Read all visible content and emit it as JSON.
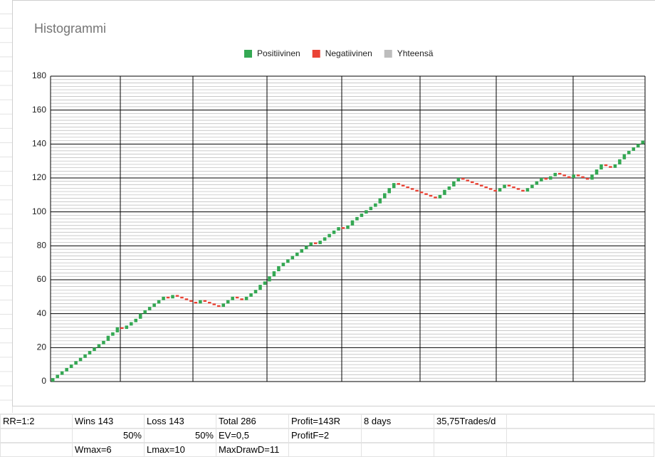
{
  "chart_data": {
    "type": "waterfall",
    "title": "Histogrammi",
    "series": [
      {
        "name": "Positiivinen",
        "color": "#34a853"
      },
      {
        "name": "Negatiivinen",
        "color": "#ea4335"
      },
      {
        "name": "Yhteensä",
        "color": "#bdbdbd"
      }
    ],
    "values": [
      2,
      2,
      2,
      2,
      2,
      2,
      2,
      2,
      2,
      2,
      2,
      2,
      3,
      2,
      3,
      -1,
      2,
      2,
      2,
      3,
      2,
      2,
      2,
      2,
      2,
      -1,
      2,
      -1,
      -1,
      -1,
      -1,
      -1,
      2,
      -1,
      -1,
      -1,
      -1,
      2,
      2,
      2,
      -1,
      -1,
      2,
      2,
      2,
      3,
      2,
      3,
      3,
      3,
      2,
      2,
      2,
      2,
      2,
      2,
      2,
      -1,
      2,
      2,
      2,
      2,
      2,
      -1,
      2,
      3,
      2,
      2,
      2,
      2,
      2,
      3,
      3,
      3,
      3,
      -1,
      -1,
      -1,
      -1,
      -1,
      -1,
      -1,
      -1,
      -1,
      2,
      3,
      2,
      3,
      2,
      -1,
      -1,
      -1,
      -1,
      -1,
      -1,
      -1,
      -1,
      2,
      2,
      -1,
      -1,
      -1,
      -1,
      2,
      2,
      2,
      2,
      -1,
      2,
      2,
      -1,
      -1,
      -1,
      2,
      -1,
      -1,
      -1,
      3,
      3,
      3,
      -1,
      -1,
      2,
      3,
      3,
      2,
      2,
      2,
      2
    ],
    "ylim": [
      0,
      180
    ],
    "yticks": [
      0,
      20,
      40,
      60,
      80,
      100,
      120,
      140,
      160,
      180
    ],
    "grid": true,
    "minor_grid_count": 10,
    "legend": "top"
  },
  "table": {
    "rows": [
      [
        "RR=1:2",
        "Wins 143",
        "Loss 143",
        "Total 286",
        "Profit=143R",
        "8 days",
        "35,75Trades/d"
      ],
      [
        null,
        "50%",
        "50%",
        "EV=0,5",
        "ProfitF=2",
        null,
        null
      ],
      [
        null,
        "Wmax=6",
        "Lmax=10",
        "MaxDrawD=11",
        null,
        null,
        null
      ]
    ]
  }
}
